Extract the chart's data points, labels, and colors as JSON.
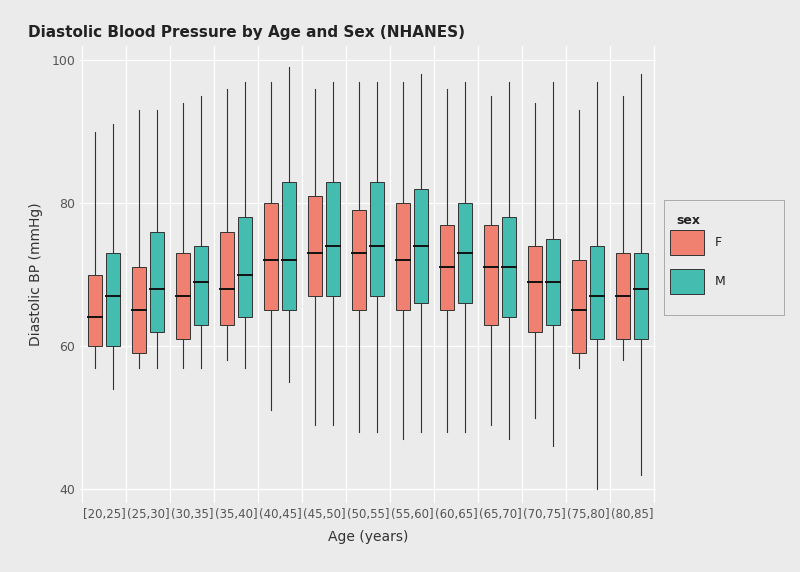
{
  "title": "Diastolic Blood Pressure by Age and Sex (NHANES)",
  "xlabel": "Age (years)",
  "ylabel": "Diastolic BP (mmHg)",
  "ylim": [
    38,
    102
  ],
  "yticks": [
    40,
    60,
    80,
    100
  ],
  "background_color": "#EBEBEB",
  "color_F": "#F08070",
  "color_M": "#44BDB0",
  "age_groups": [
    "[20,25]",
    "(25,30]",
    "(30,35]",
    "(35,40]",
    "(40,45]",
    "(45,50]",
    "(50,55]",
    "(55,60]",
    "(60,65]",
    "(65,70]",
    "(70,75]",
    "(75,80]",
    "(80,85]"
  ],
  "boxes_F": [
    {
      "q1": 60,
      "median": 64,
      "q3": 70,
      "whislo": 57,
      "whishi": 90
    },
    {
      "q1": 59,
      "median": 65,
      "q3": 71,
      "whislo": 57,
      "whishi": 93
    },
    {
      "q1": 61,
      "median": 67,
      "q3": 73,
      "whislo": 57,
      "whishi": 94
    },
    {
      "q1": 63,
      "median": 68,
      "q3": 76,
      "whislo": 58,
      "whishi": 96
    },
    {
      "q1": 65,
      "median": 72,
      "q3": 80,
      "whislo": 51,
      "whishi": 97
    },
    {
      "q1": 67,
      "median": 73,
      "q3": 81,
      "whislo": 49,
      "whishi": 96
    },
    {
      "q1": 65,
      "median": 73,
      "q3": 79,
      "whislo": 48,
      "whishi": 97
    },
    {
      "q1": 65,
      "median": 72,
      "q3": 80,
      "whislo": 47,
      "whishi": 97
    },
    {
      "q1": 65,
      "median": 71,
      "q3": 77,
      "whislo": 48,
      "whishi": 96
    },
    {
      "q1": 63,
      "median": 71,
      "q3": 77,
      "whislo": 49,
      "whishi": 95
    },
    {
      "q1": 62,
      "median": 69,
      "q3": 74,
      "whislo": 50,
      "whishi": 94
    },
    {
      "q1": 59,
      "median": 65,
      "q3": 72,
      "whislo": 57,
      "whishi": 93
    },
    {
      "q1": 61,
      "median": 67,
      "q3": 73,
      "whislo": 58,
      "whishi": 95
    }
  ],
  "boxes_M": [
    {
      "q1": 60,
      "median": 67,
      "q3": 73,
      "whislo": 54,
      "whishi": 91
    },
    {
      "q1": 62,
      "median": 68,
      "q3": 76,
      "whislo": 57,
      "whishi": 93
    },
    {
      "q1": 63,
      "median": 69,
      "q3": 74,
      "whislo": 57,
      "whishi": 95
    },
    {
      "q1": 64,
      "median": 70,
      "q3": 78,
      "whislo": 57,
      "whishi": 97
    },
    {
      "q1": 65,
      "median": 72,
      "q3": 83,
      "whislo": 55,
      "whishi": 99
    },
    {
      "q1": 67,
      "median": 74,
      "q3": 83,
      "whislo": 49,
      "whishi": 97
    },
    {
      "q1": 67,
      "median": 74,
      "q3": 83,
      "whislo": 48,
      "whishi": 97
    },
    {
      "q1": 66,
      "median": 74,
      "q3": 82,
      "whislo": 48,
      "whishi": 98
    },
    {
      "q1": 66,
      "median": 73,
      "q3": 80,
      "whislo": 48,
      "whishi": 97
    },
    {
      "q1": 64,
      "median": 71,
      "q3": 78,
      "whislo": 47,
      "whishi": 97
    },
    {
      "q1": 63,
      "median": 69,
      "q3": 75,
      "whislo": 46,
      "whishi": 97
    },
    {
      "q1": 61,
      "median": 67,
      "q3": 74,
      "whislo": 40,
      "whishi": 97
    },
    {
      "q1": 61,
      "median": 68,
      "q3": 73,
      "whislo": 42,
      "whishi": 98
    }
  ]
}
